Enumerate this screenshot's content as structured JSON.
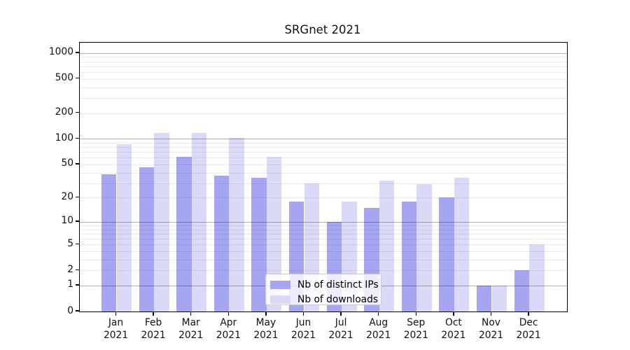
{
  "chart_data": {
    "type": "bar",
    "title": "SRGnet 2021",
    "scale": "log1p",
    "grid": true,
    "legend_position": "lower center",
    "categories": [
      "Jan",
      "Feb",
      "Mar",
      "Apr",
      "May",
      "Jun",
      "Jul",
      "Aug",
      "Sep",
      "Oct",
      "Nov",
      "Dec"
    ],
    "category_year": "2021",
    "series": [
      {
        "name": "Nb of distinct IPs",
        "color": "#a5a5f2",
        "values": [
          38,
          46,
          61,
          37,
          35,
          18,
          10,
          15,
          18,
          20,
          1,
          2
        ]
      },
      {
        "name": "Nb of downloads",
        "color": "#dadaf8",
        "values": [
          87,
          118,
          118,
          102,
          61,
          30,
          18,
          32,
          29,
          35,
          1,
          5
        ]
      }
    ],
    "yticks": [
      0,
      1,
      2,
      5,
      10,
      20,
      50,
      100,
      200,
      500,
      1000
    ],
    "minor_yticks": [
      3,
      4,
      6,
      7,
      8,
      9,
      30,
      40,
      60,
      70,
      80,
      90,
      300,
      400,
      600,
      700,
      800,
      900
    ],
    "ylim": [
      0,
      1320
    ],
    "xlabel": "",
    "ylabel": "",
    "grid_color_major": "rgba(0,0,0,0.30)",
    "grid_color_minor": "rgba(0,0,0,0.075)"
  }
}
